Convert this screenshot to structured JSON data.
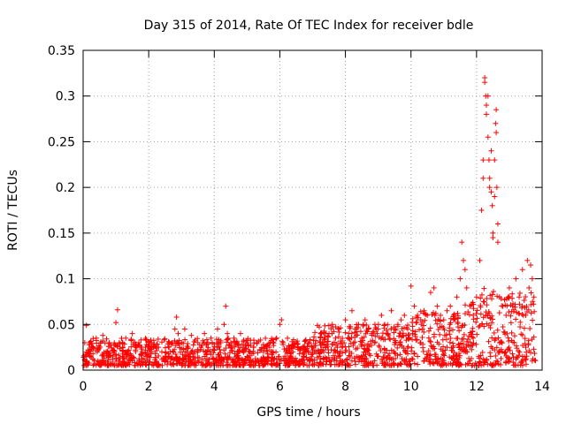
{
  "chart_data": {
    "type": "scatter",
    "title": "Day 315 of 2014, Rate Of TEC Index for receiver bdle",
    "xlabel": "GPS time / hours",
    "ylabel": "ROTI / TECUs",
    "xlim": [
      0,
      14
    ],
    "ylim": [
      0,
      0.35
    ],
    "x_ticks": [
      0,
      2,
      4,
      6,
      8,
      10,
      12,
      14
    ],
    "x_tick_labels": [
      "0",
      "2",
      "4",
      "6",
      "8",
      "10",
      "12",
      "14"
    ],
    "y_ticks": [
      0,
      0.05,
      0.1,
      0.15,
      0.2,
      0.25,
      0.3,
      0.35
    ],
    "y_tick_labels": [
      "0",
      "0.05",
      "0.1",
      "0.15",
      "0.2",
      "0.25",
      "0.3",
      "0.35"
    ],
    "grid": true,
    "marker": "+",
    "marker_color": "#ff0000",
    "series": [
      {
        "name": "ROTI",
        "x": [
          0.05,
          0.1,
          0.15,
          0.2,
          0.3,
          0.4,
          0.5,
          0.6,
          0.7,
          0.8,
          0.9,
          1.0,
          1.05,
          1.1,
          1.2,
          1.3,
          1.4,
          1.5,
          1.6,
          1.7,
          1.8,
          1.9,
          2.0,
          2.1,
          2.2,
          2.3,
          2.4,
          2.5,
          2.6,
          2.7,
          2.8,
          2.85,
          2.9,
          3.0,
          3.1,
          3.2,
          3.3,
          3.4,
          3.5,
          3.6,
          3.7,
          3.8,
          3.9,
          4.0,
          4.1,
          4.2,
          4.3,
          4.35,
          4.4,
          4.5,
          4.6,
          4.7,
          4.8,
          4.9,
          5.0,
          5.1,
          5.2,
          5.3,
          5.4,
          5.5,
          5.6,
          5.7,
          5.8,
          5.9,
          6.0,
          6.05,
          6.1,
          6.2,
          6.3,
          6.4,
          6.5,
          6.6,
          6.7,
          6.8,
          6.9,
          7.0,
          7.1,
          7.2,
          7.3,
          7.4,
          7.5,
          7.6,
          7.7,
          7.8,
          7.9,
          8.0,
          8.1,
          8.2,
          8.3,
          8.4,
          8.5,
          8.6,
          8.7,
          8.8,
          8.9,
          9.0,
          9.1,
          9.2,
          9.3,
          9.4,
          9.5,
          9.6,
          9.7,
          9.8,
          9.9,
          10.0,
          10.1,
          10.2,
          10.3,
          10.4,
          10.5,
          10.6,
          10.7,
          10.8,
          10.9,
          11.0,
          11.1,
          11.2,
          11.3,
          11.4,
          11.5,
          11.55,
          11.6,
          11.65,
          11.7,
          11.8,
          11.9,
          12.0,
          12.1,
          12.15,
          12.2,
          12.25,
          12.3,
          12.35,
          12.4,
          12.45,
          12.5,
          12.55,
          12.6,
          12.65,
          12.7,
          12.8,
          12.9,
          13.0,
          13.1,
          13.2,
          13.3,
          13.4,
          13.5,
          13.55,
          13.6,
          13.65,
          13.7,
          13.75,
          0.1,
          0.3,
          0.6,
          0.9,
          1.2,
          1.5,
          1.8,
          2.2,
          2.5,
          2.8,
          3.2,
          3.5,
          3.8,
          4.2,
          4.6,
          5.0,
          5.4,
          5.8,
          6.2,
          6.6,
          7.0,
          7.4,
          7.8,
          8.2,
          8.6,
          9.0,
          9.4,
          9.8,
          10.2,
          10.6,
          11.0,
          11.4,
          11.8,
          12.2,
          12.6,
          13.0,
          13.4,
          13.7,
          0.2,
          0.7,
          1.3,
          1.9,
          2.6,
          3.3,
          4.0,
          4.7,
          5.5,
          6.3,
          7.1,
          7.9,
          8.7,
          9.5,
          10.3,
          11.1,
          11.9,
          12.7,
          13.5,
          12.25,
          12.3,
          12.35,
          12.4,
          12.45,
          12.5,
          12.55,
          12.6,
          12.2,
          12.28,
          12.38,
          12.48,
          12.58,
          12.62,
          12.65
        ],
        "y": [
          0.03,
          0.049,
          0.022,
          0.03,
          0.018,
          0.035,
          0.025,
          0.038,
          0.02,
          0.03,
          0.022,
          0.052,
          0.066,
          0.03,
          0.025,
          0.035,
          0.018,
          0.04,
          0.022,
          0.03,
          0.02,
          0.025,
          0.015,
          0.02,
          0.018,
          0.025,
          0.02,
          0.015,
          0.025,
          0.03,
          0.045,
          0.058,
          0.04,
          0.03,
          0.045,
          0.025,
          0.038,
          0.02,
          0.03,
          0.025,
          0.04,
          0.022,
          0.035,
          0.028,
          0.045,
          0.03,
          0.05,
          0.07,
          0.04,
          0.025,
          0.035,
          0.02,
          0.04,
          0.025,
          0.03,
          0.02,
          0.025,
          0.03,
          0.022,
          0.028,
          0.025,
          0.03,
          0.02,
          0.035,
          0.05,
          0.055,
          0.03,
          0.022,
          0.025,
          0.02,
          0.03,
          0.018,
          0.025,
          0.02,
          0.03,
          0.022,
          0.02,
          0.015,
          0.03,
          0.025,
          0.04,
          0.05,
          0.035,
          0.045,
          0.03,
          0.055,
          0.04,
          0.065,
          0.045,
          0.05,
          0.035,
          0.055,
          0.045,
          0.04,
          0.05,
          0.045,
          0.06,
          0.05,
          0.04,
          0.065,
          0.045,
          0.05,
          0.055,
          0.06,
          0.045,
          0.092,
          0.07,
          0.06,
          0.055,
          0.065,
          0.06,
          0.085,
          0.09,
          0.07,
          0.06,
          0.055,
          0.065,
          0.07,
          0.06,
          0.08,
          0.1,
          0.14,
          0.12,
          0.11,
          0.09,
          0.07,
          0.06,
          0.08,
          0.12,
          0.175,
          0.23,
          0.32,
          0.28,
          0.3,
          0.2,
          0.24,
          0.15,
          0.19,
          0.26,
          0.16,
          0.08,
          0.07,
          0.06,
          0.09,
          0.07,
          0.1,
          0.08,
          0.11,
          0.06,
          0.12,
          0.09,
          0.115,
          0.1,
          0.08,
          0.015,
          0.012,
          0.01,
          0.012,
          0.015,
          0.01,
          0.012,
          0.008,
          0.01,
          0.012,
          0.015,
          0.01,
          0.012,
          0.01,
          0.012,
          0.015,
          0.01,
          0.012,
          0.008,
          0.01,
          0.01,
          0.012,
          0.015,
          0.01,
          0.012,
          0.015,
          0.012,
          0.01,
          0.015,
          0.012,
          0.01,
          0.015,
          0.01,
          0.012,
          0.01,
          0.012,
          0.015,
          0.01,
          0.022,
          0.018,
          0.02,
          0.022,
          0.018,
          0.02,
          0.022,
          0.018,
          0.02,
          0.022,
          0.02,
          0.025,
          0.022,
          0.028,
          0.03,
          0.025,
          0.035,
          0.03,
          0.025,
          0.315,
          0.29,
          0.255,
          0.21,
          0.195,
          0.145,
          0.23,
          0.285,
          0.21,
          0.3,
          0.23,
          0.18,
          0.27,
          0.2,
          0.14
        ]
      }
    ],
    "noise_band": [
      {
        "x0": 0,
        "x1": 7,
        "low": 0.005,
        "high": 0.035
      },
      {
        "x0": 7,
        "x1": 10,
        "low": 0.005,
        "high": 0.05
      },
      {
        "x0": 10,
        "x1": 11.5,
        "low": 0.005,
        "high": 0.065
      },
      {
        "x0": 11.5,
        "x1": 12.1,
        "low": 0.005,
        "high": 0.075
      },
      {
        "x0": 12.1,
        "x1": 12.8,
        "low": 0.005,
        "high": 0.09
      },
      {
        "x0": 12.8,
        "x1": 13.8,
        "low": 0.005,
        "high": 0.085
      }
    ]
  }
}
